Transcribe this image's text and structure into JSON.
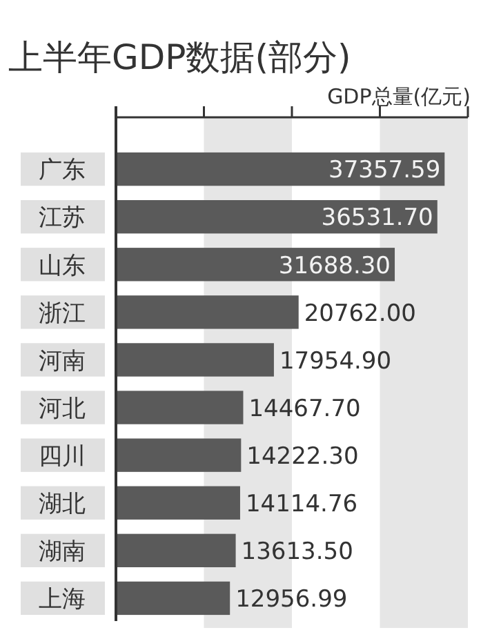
{
  "chart_data": {
    "type": "bar",
    "orientation": "horizontal",
    "title": "上半年GDP数据(部分)",
    "xlabel": "GDP总量(亿元)",
    "categories": [
      "广东",
      "江苏",
      "山东",
      "浙江",
      "河南",
      "河北",
      "四川",
      "湖北",
      "湖南",
      "上海"
    ],
    "values": [
      37357.59,
      36531.7,
      31688.3,
      20762.0,
      17954.9,
      14467.7,
      14222.3,
      14114.76,
      13613.5,
      12956.99
    ],
    "value_labels": [
      "37357.59",
      "36531.70",
      "31688.30",
      "20762.00",
      "17954.90",
      "14467.70",
      "14222.30",
      "14114.76",
      "13613.50",
      "12956.99"
    ],
    "color": "#5a5a5a",
    "xlim": [
      0,
      40000
    ],
    "xticks": [
      {
        "value": 0,
        "label": null
      },
      {
        "value": 10000,
        "label": null
      },
      {
        "value": 20000,
        "label": null
      },
      {
        "value": 30000,
        "label": null
      },
      {
        "value": 40000,
        "label": null
      }
    ],
    "bands": [
      {
        "axis": "x",
        "from": 10000,
        "to": 20000,
        "color": "#e6e6e6"
      },
      {
        "axis": "x",
        "from": 30000,
        "to": 40000,
        "color": "#e6e6e6"
      }
    ],
    "grid": false
  }
}
